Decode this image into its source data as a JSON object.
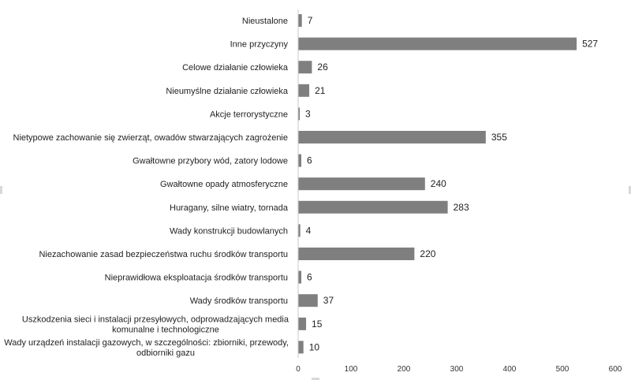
{
  "chart_data": {
    "type": "bar",
    "orientation": "horizontal",
    "title": "",
    "xlabel": "",
    "ylabel": "",
    "xlim": [
      0,
      600
    ],
    "ticks": [
      0,
      100,
      200,
      300,
      400,
      500,
      600
    ],
    "grid": false,
    "legend": "none",
    "bar_color": "#7f7f7f",
    "categories": [
      [
        "Nieustalone"
      ],
      [
        "Inne przyczyny"
      ],
      [
        "Celowe działanie człowieka"
      ],
      [
        "Nieumyślne działanie człowieka"
      ],
      [
        "Akcje terrorystyczne"
      ],
      [
        "Nietypowe zachowanie się zwierząt, owadów stwarzających zagrożenie"
      ],
      [
        "Gwałtowne przybory wód, zatory lodowe"
      ],
      [
        "Gwałtowne opady atmosferyczne"
      ],
      [
        "Huragany, silne wiatry, tornada"
      ],
      [
        "Wady konstrukcji budowlanych"
      ],
      [
        "Niezachowanie zasad bezpieczeństwa ruchu środków transportu"
      ],
      [
        "Nieprawidłowa eksploatacja środków transportu"
      ],
      [
        "Wady środków transportu"
      ],
      [
        "Uszkodzenia sieci i instalacji przesyłowych, odprowadzających media",
        "komunalne i technologiczne"
      ],
      [
        "Wady urządzeń instalacji gazowych, w szczególności: zbiorniki, przewody,",
        "odbiorniki gazu"
      ]
    ],
    "values": [
      7,
      527,
      26,
      21,
      3,
      355,
      6,
      240,
      283,
      4,
      220,
      6,
      37,
      15,
      10
    ]
  }
}
